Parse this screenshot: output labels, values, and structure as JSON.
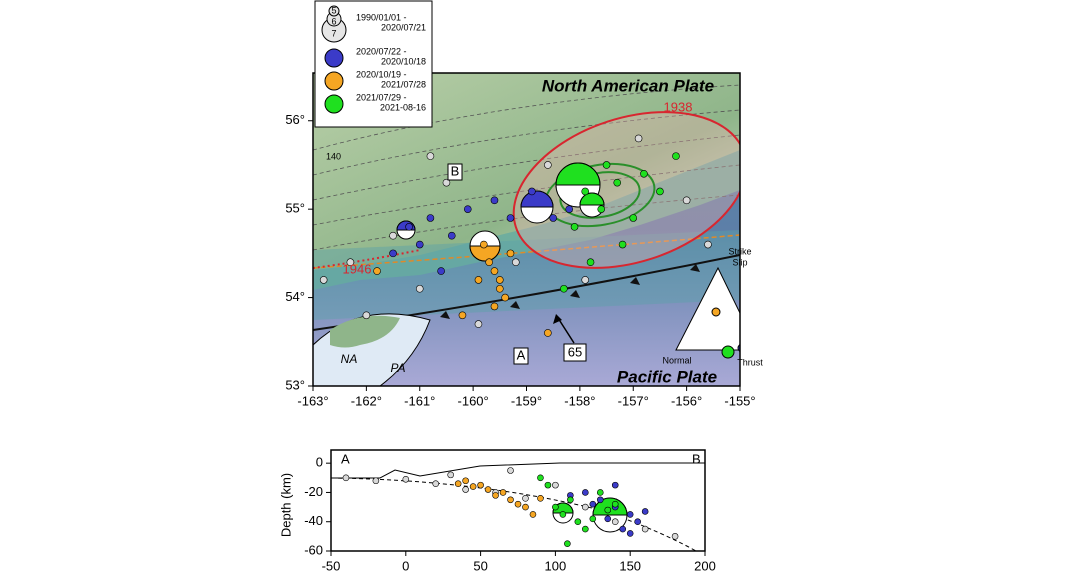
{
  "legend": {
    "sizes": [
      "5",
      "6",
      "7"
    ],
    "items": [
      {
        "label": [
          "1990/01/01 -",
          "2020/07/21"
        ],
        "color": "#d9d9d9",
        "map_lon": [
          -162.8,
          -162.3,
          -161.5,
          -161.0,
          -160.5,
          -159.9,
          -159.2,
          -158.6,
          -157.9,
          -156.9,
          -156.0,
          -155.6,
          -162.0,
          -160.8
        ],
        "map_lat": [
          54.2,
          54.4,
          54.7,
          54.1,
          55.3,
          53.7,
          54.4,
          55.5,
          54.2,
          55.8,
          55.1,
          54.6,
          53.8,
          55.6
        ],
        "dist": [
          -40,
          -20,
          0,
          20,
          40,
          60,
          80,
          100,
          120,
          140,
          160,
          180,
          30,
          70
        ],
        "depth": [
          -10,
          -12,
          -11,
          -14,
          -18,
          -20,
          -24,
          -15,
          -30,
          -40,
          -45,
          -50,
          -8,
          -5
        ]
      },
      {
        "label": [
          "2020/07/22 -",
          "2020/10/18"
        ],
        "color": "#3b3bc8",
        "map_lon": [
          -161.2,
          -161.0,
          -160.8,
          -160.4,
          -160.1,
          -159.6,
          -159.3,
          -158.9,
          -158.5,
          -158.2,
          -161.5,
          -160.6
        ],
        "map_lat": [
          54.8,
          54.6,
          54.9,
          54.7,
          55.0,
          55.1,
          54.9,
          55.2,
          54.9,
          55.0,
          54.5,
          54.3
        ],
        "dist": [
          120,
          130,
          140,
          150,
          155,
          145,
          135,
          125,
          110,
          160,
          150,
          140
        ],
        "depth": [
          -20,
          -25,
          -30,
          -35,
          -40,
          -45,
          -38,
          -28,
          -22,
          -33,
          -48,
          -15
        ]
      },
      {
        "label": [
          "2020/10/19 -",
          "2021/07/28"
        ],
        "color": "#f5a623",
        "map_lon": [
          -159.8,
          -159.7,
          -159.6,
          -159.5,
          -159.4,
          -159.9,
          -159.3,
          -159.6,
          -159.5,
          -160.2,
          -158.6,
          -161.8
        ],
        "map_lat": [
          54.6,
          54.4,
          54.3,
          54.1,
          54.0,
          54.2,
          54.5,
          53.9,
          54.2,
          53.8,
          53.6,
          54.3
        ],
        "dist": [
          40,
          50,
          55,
          60,
          65,
          70,
          75,
          80,
          45,
          85,
          90,
          35
        ],
        "depth": [
          -12,
          -15,
          -18,
          -22,
          -20,
          -25,
          -28,
          -30,
          -16,
          -35,
          -24,
          -14
        ]
      },
      {
        "label": [
          "2021/07/29 -",
          "2021-08-16"
        ],
        "color": "#1fe01f",
        "map_lon": [
          -157.9,
          -157.6,
          -157.3,
          -157.0,
          -156.8,
          -157.5,
          -158.1,
          -156.5,
          -157.2,
          -156.2,
          -157.8,
          -158.3
        ],
        "map_lat": [
          55.2,
          55.0,
          55.3,
          54.9,
          55.4,
          55.5,
          54.8,
          55.2,
          54.6,
          55.6,
          54.4,
          54.1
        ],
        "dist": [
          100,
          105,
          110,
          115,
          120,
          125,
          130,
          135,
          140,
          95,
          90,
          108
        ],
        "depth": [
          -30,
          -35,
          -25,
          -40,
          -45,
          -38,
          -20,
          -32,
          -28,
          -15,
          -10,
          -55
        ]
      }
    ]
  },
  "map": {
    "xlim": [
      -163,
      -155
    ],
    "ylim": [
      53,
      56.54
    ],
    "xticks": [
      {
        "value": -163,
        "label": "-163°"
      },
      {
        "value": -162,
        "label": "-162°"
      },
      {
        "value": -161,
        "label": "-161°"
      },
      {
        "value": -160,
        "label": "-160°"
      },
      {
        "value": -159,
        "label": "-159°"
      },
      {
        "value": -158,
        "label": "-158°"
      },
      {
        "value": -157,
        "label": "-157°"
      },
      {
        "value": -156,
        "label": "-156°"
      },
      {
        "value": -155,
        "label": "-155°"
      }
    ],
    "yticks": [
      {
        "value": 53,
        "label": "53°"
      },
      {
        "value": 54,
        "label": "54°"
      },
      {
        "value": 55,
        "label": "55°"
      },
      {
        "value": 56,
        "label": "56°"
      }
    ],
    "north_plate": "North American Plate",
    "south_plate": "Pacific Plate",
    "rupture_1938": "1938",
    "rupture_1946": "1946",
    "point_b": "B",
    "point_a": "A",
    "rate": "65",
    "contour": "140",
    "inset_na": "NA",
    "inset_pa": "PA",
    "triangle": {
      "top": [
        "Strike",
        "Slip"
      ],
      "left": "Normal",
      "right": "Thrust"
    }
  },
  "section": {
    "ylabel": "Depth (km)",
    "start": "A",
    "end": "B",
    "xlim": [
      -50,
      200
    ],
    "ylim": [
      -60,
      9
    ],
    "xticks": [
      -50,
      0,
      50,
      100,
      150,
      200
    ],
    "yticks": [
      0,
      -20,
      -40,
      -60
    ]
  }
}
